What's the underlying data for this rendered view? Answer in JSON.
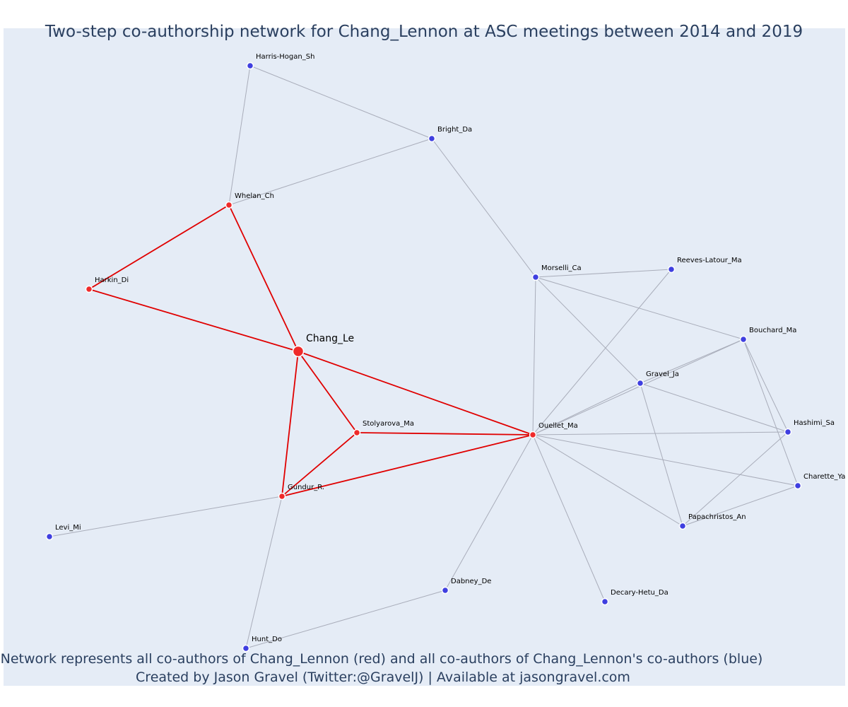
{
  "title": "Two-step co-authorship network for Chang_Lennon at ASC meetings between 2014 and 2019",
  "caption": {
    "line1": "Network represents all co-authors of Chang_Lennon (red) and all co-authors of Chang_Lennon's co-authors (blue)",
    "line2": "Created by Jason Gravel (Twitter:@GravelJ) | Available at jasongravel.com"
  },
  "colors": {
    "background": "#e5ecf6",
    "coauthor": "#ef2a2a",
    "second_step": "#3f3fe0",
    "red_edge": "#e00000",
    "grey_edge": "#a9adba",
    "text": "#2a3f5f"
  },
  "nodes": [
    {
      "id": "Chang_Le",
      "group": "focal"
    },
    {
      "id": "Whelan_Ch",
      "group": "coauthor"
    },
    {
      "id": "Harkin_Di",
      "group": "coauthor"
    },
    {
      "id": "Stolyarova_Ma",
      "group": "coauthor"
    },
    {
      "id": "Gundur_R.",
      "group": "coauthor"
    },
    {
      "id": "Ouellet_Ma",
      "group": "coauthor"
    },
    {
      "id": "Harris-Hogan_Sh",
      "group": "second_step"
    },
    {
      "id": "Bright_Da",
      "group": "second_step"
    },
    {
      "id": "Morselli_Ca",
      "group": "second_step"
    },
    {
      "id": "Reeves-Latour_Ma",
      "group": "second_step"
    },
    {
      "id": "Bouchard_Ma",
      "group": "second_step"
    },
    {
      "id": "Gravel_Ja",
      "group": "second_step"
    },
    {
      "id": "Hashimi_Sa",
      "group": "second_step"
    },
    {
      "id": "Charette_Ya",
      "group": "second_step"
    },
    {
      "id": "Papachristos_An",
      "group": "second_step"
    },
    {
      "id": "Decary-Hetu_Da",
      "group": "second_step"
    },
    {
      "id": "Dabney_De",
      "group": "second_step"
    },
    {
      "id": "Hunt_Do",
      "group": "second_step"
    },
    {
      "id": "Levi_Mi",
      "group": "second_step"
    }
  ],
  "edges": [
    {
      "source": "Chang_Le",
      "target": "Harkin_Di",
      "type": "red"
    },
    {
      "source": "Chang_Le",
      "target": "Whelan_Ch",
      "type": "red"
    },
    {
      "source": "Chang_Le",
      "target": "Stolyarova_Ma",
      "type": "red"
    },
    {
      "source": "Chang_Le",
      "target": "Gundur_R.",
      "type": "red"
    },
    {
      "source": "Chang_Le",
      "target": "Ouellet_Ma",
      "type": "red"
    },
    {
      "source": "Whelan_Ch",
      "target": "Harkin_Di",
      "type": "red"
    },
    {
      "source": "Stolyarova_Ma",
      "target": "Gundur_R.",
      "type": "red"
    },
    {
      "source": "Stolyarova_Ma",
      "target": "Ouellet_Ma",
      "type": "red"
    },
    {
      "source": "Gundur_R.",
      "target": "Ouellet_Ma",
      "type": "red"
    },
    {
      "source": "Harris-Hogan_Sh",
      "target": "Bright_Da",
      "type": "grey"
    },
    {
      "source": "Harris-Hogan_Sh",
      "target": "Whelan_Ch",
      "type": "grey"
    },
    {
      "source": "Bright_Da",
      "target": "Whelan_Ch",
      "type": "grey"
    },
    {
      "source": "Bright_Da",
      "target": "Morselli_Ca",
      "type": "grey"
    },
    {
      "source": "Morselli_Ca",
      "target": "Reeves-Latour_Ma",
      "type": "grey"
    },
    {
      "source": "Morselli_Ca",
      "target": "Bouchard_Ma",
      "type": "grey"
    },
    {
      "source": "Morselli_Ca",
      "target": "Gravel_Ja",
      "type": "grey"
    },
    {
      "source": "Morselli_Ca",
      "target": "Ouellet_Ma",
      "type": "grey"
    },
    {
      "source": "Reeves-Latour_Ma",
      "target": "Ouellet_Ma",
      "type": "grey"
    },
    {
      "source": "Bouchard_Ma",
      "target": "Ouellet_Ma",
      "type": "grey"
    },
    {
      "source": "Bouchard_Ma",
      "target": "Gravel_Ja",
      "type": "grey"
    },
    {
      "source": "Bouchard_Ma",
      "target": "Hashimi_Sa",
      "type": "grey"
    },
    {
      "source": "Bouchard_Ma",
      "target": "Charette_Ya",
      "type": "grey"
    },
    {
      "source": "Gravel_Ja",
      "target": "Ouellet_Ma",
      "type": "grey"
    },
    {
      "source": "Gravel_Ja",
      "target": "Hashimi_Sa",
      "type": "grey"
    },
    {
      "source": "Gravel_Ja",
      "target": "Papachristos_An",
      "type": "grey"
    },
    {
      "source": "Ouellet_Ma",
      "target": "Hashimi_Sa",
      "type": "grey"
    },
    {
      "source": "Ouellet_Ma",
      "target": "Charette_Ya",
      "type": "grey"
    },
    {
      "source": "Ouellet_Ma",
      "target": "Papachristos_An",
      "type": "grey"
    },
    {
      "source": "Ouellet_Ma",
      "target": "Decary-Hetu_Da",
      "type": "grey"
    },
    {
      "source": "Ouellet_Ma",
      "target": "Dabney_De",
      "type": "grey"
    },
    {
      "source": "Hashimi_Sa",
      "target": "Papachristos_An",
      "type": "grey"
    },
    {
      "source": "Charette_Ya",
      "target": "Papachristos_An",
      "type": "grey"
    },
    {
      "source": "Dabney_De",
      "target": "Hunt_Do",
      "type": "grey"
    },
    {
      "source": "Gundur_R.",
      "target": "Hunt_Do",
      "type": "grey"
    },
    {
      "source": "Gundur_R.",
      "target": "Levi_Mi",
      "type": "grey"
    }
  ]
}
